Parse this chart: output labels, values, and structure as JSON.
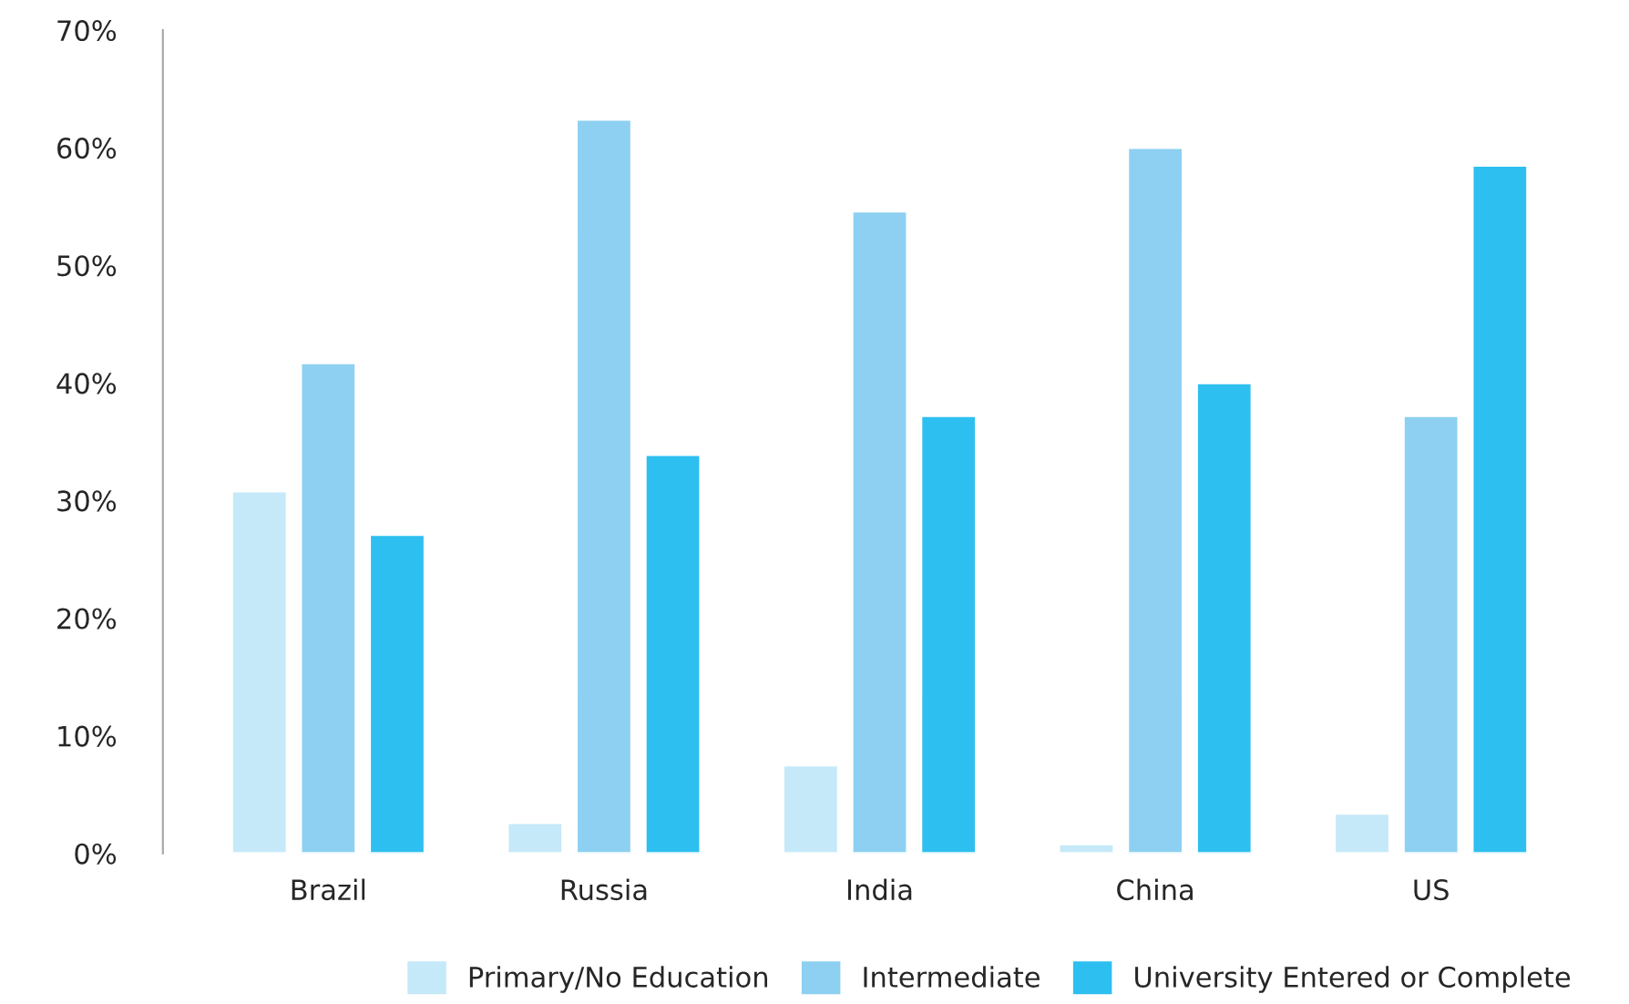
{
  "chart_data": {
    "type": "bar",
    "categories": [
      "Brazil",
      "Russia",
      "India",
      "China",
      "US"
    ],
    "series": [
      {
        "name": "Primary/No Education",
        "color": "#c5e9f8",
        "values": [
          30.8,
          2.6,
          7.5,
          0.8,
          3.4
        ]
      },
      {
        "name": "Intermediate",
        "color": "#8dd0f1",
        "values": [
          41.7,
          62.4,
          54.6,
          60.0,
          37.2
        ]
      },
      {
        "name": "University Entered or Complete",
        "color": "#2dbfef",
        "values": [
          27.1,
          33.9,
          37.2,
          40.0,
          58.5
        ]
      }
    ],
    "ylim": [
      0,
      70
    ],
    "yticks": [
      {
        "value": 0,
        "label": "0%"
      },
      {
        "value": 10,
        "label": "10%"
      },
      {
        "value": 20,
        "label": "20%"
      },
      {
        "value": 30,
        "label": "30%"
      },
      {
        "value": 40,
        "label": "40%"
      },
      {
        "value": 50,
        "label": "50%"
      },
      {
        "value": 60,
        "label": "60%"
      },
      {
        "value": 70,
        "label": "70%"
      }
    ],
    "grid": false,
    "legend": "bottom"
  }
}
